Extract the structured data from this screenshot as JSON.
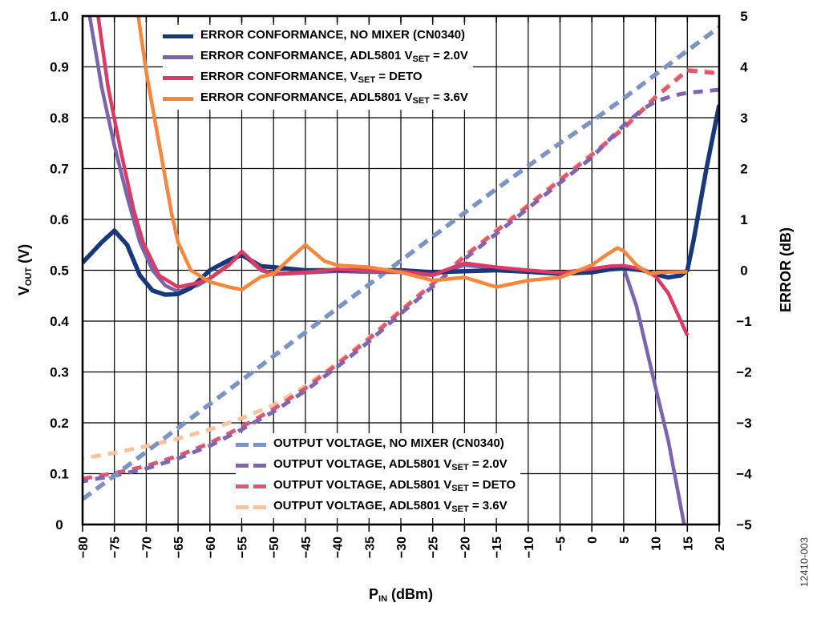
{
  "watermark": "12410-003",
  "axes": {
    "x_title": {
      "pre": "P",
      "sub": "IN",
      "post": " (dBm)"
    },
    "y_left_title": {
      "pre": "V",
      "sub": "OUT",
      "post": " (V)"
    },
    "y_right_title": {
      "pre": "ERROR (dB)",
      "sub": "",
      "post": ""
    },
    "x_ticks": [
      {
        "v": -80,
        "label": "−80"
      },
      {
        "v": -75,
        "label": "−75"
      },
      {
        "v": -70,
        "label": "−70"
      },
      {
        "v": -65,
        "label": "−65"
      },
      {
        "v": -60,
        "label": "−60"
      },
      {
        "v": -55,
        "label": "−55"
      },
      {
        "v": -50,
        "label": "−50"
      },
      {
        "v": -45,
        "label": "−45"
      },
      {
        "v": -40,
        "label": "−40"
      },
      {
        "v": -35,
        "label": "−35"
      },
      {
        "v": -30,
        "label": "−30"
      },
      {
        "v": -25,
        "label": "−25"
      },
      {
        "v": -20,
        "label": "−20"
      },
      {
        "v": -15,
        "label": "−15"
      },
      {
        "v": -10,
        "label": "−10"
      },
      {
        "v": -5,
        "label": "−5"
      },
      {
        "v": 0,
        "label": "0"
      },
      {
        "v": 5,
        "label": "5"
      },
      {
        "v": 10,
        "label": "10"
      },
      {
        "v": 15,
        "label": "15"
      },
      {
        "v": 20,
        "label": "20"
      }
    ],
    "y_left_ticks": [
      {
        "v": 0,
        "label": "0"
      },
      {
        "v": 0.1,
        "label": "0.1"
      },
      {
        "v": 0.2,
        "label": "0.2"
      },
      {
        "v": 0.3,
        "label": "0.3"
      },
      {
        "v": 0.4,
        "label": "0.4"
      },
      {
        "v": 0.5,
        "label": "0.5"
      },
      {
        "v": 0.6,
        "label": "0.6"
      },
      {
        "v": 0.7,
        "label": "0.7"
      },
      {
        "v": 0.8,
        "label": "0.8"
      },
      {
        "v": 0.9,
        "label": "0.9"
      },
      {
        "v": 1.0,
        "label": "1.0"
      }
    ],
    "y_right_ticks": [
      {
        "v": -5,
        "label": "−5"
      },
      {
        "v": -4,
        "label": "−4"
      },
      {
        "v": -3,
        "label": "−3"
      },
      {
        "v": -2,
        "label": "−2"
      },
      {
        "v": -1,
        "label": "−1"
      },
      {
        "v": 0,
        "label": "0"
      },
      {
        "v": 1,
        "label": "1"
      },
      {
        "v": 2,
        "label": "2"
      },
      {
        "v": 3,
        "label": "3"
      },
      {
        "v": 4,
        "label": "4"
      },
      {
        "v": 5,
        "label": "5"
      }
    ]
  },
  "legend_top": {
    "items": [
      {
        "pre": "ERROR CONFORMANCE, NO MIXER (CN0340)",
        "sub": "",
        "post": "",
        "color": "#17397c",
        "style": "solid"
      },
      {
        "pre": "ERROR CONFORMANCE, ADL5801 V",
        "sub": "SET",
        "post": " = 2.0V",
        "color": "#7c63ad",
        "style": "solid"
      },
      {
        "pre": "ERROR CONFORMANCE, V",
        "sub": "SET",
        "post": " = DETO",
        "color": "#dd3a63",
        "style": "solid"
      },
      {
        "pre": "ERROR CONFORMANCE, ADL5801 V",
        "sub": "SET",
        "post": " = 3.6V",
        "color": "#f6873c",
        "style": "solid"
      }
    ]
  },
  "legend_bottom": {
    "items": [
      {
        "pre": "OUTPUT VOLTAGE, NO MIXER (CN0340)",
        "sub": "",
        "post": "",
        "color": "#7b94c4",
        "style": "dashed"
      },
      {
        "pre": "OUTPUT VOLTAGE, ADL5801 V",
        "sub": "SET",
        "post": " = 2.0V",
        "color": "#8066ae",
        "style": "dashed"
      },
      {
        "pre": "OUTPUT VOLTAGE, ADL5801 V",
        "sub": "SET",
        "post": " = DETO",
        "color": "#e25672",
        "style": "dashed"
      },
      {
        "pre": "OUTPUT VOLTAGE, ADL5801 V",
        "sub": "SET",
        "post": " = 3.6V",
        "color": "#fbc39c",
        "style": "dashed"
      }
    ]
  },
  "chart_data": {
    "type": "line",
    "title": "",
    "xlabel": "PIN (dBm)",
    "ylabel_left": "VOUT (V)",
    "ylabel_right": "ERROR (dB)",
    "xlim": [
      -80,
      20
    ],
    "ylim_left": [
      0,
      1.0
    ],
    "ylim_right": [
      -5,
      5
    ],
    "grid": true,
    "legend_position": [
      "top-left-inside",
      "bottom-center-inside"
    ],
    "series": [
      {
        "name": "OUTPUT VOLTAGE, ADL5801 VSET = 3.6V",
        "axis": "v",
        "color": "#fbc39c",
        "dash": "12 9",
        "dashoffset": 10,
        "width": 5,
        "points": [
          [
            -80,
            0.13
          ],
          [
            -75,
            0.141
          ],
          [
            -70,
            0.154
          ],
          [
            -65,
            0.169
          ],
          [
            -60,
            0.187
          ],
          [
            -55,
            0.209
          ],
          [
            -50,
            0.235
          ],
          [
            -45,
            0.272
          ],
          [
            -40,
            0.318
          ],
          [
            -35,
            0.368
          ],
          [
            -30,
            0.422
          ],
          [
            -25,
            0.475
          ],
          [
            -20,
            0.529
          ],
          [
            -15,
            0.579
          ],
          [
            -10,
            0.629
          ],
          [
            -5,
            0.679
          ],
          [
            0,
            0.729
          ],
          [
            5,
            0.781
          ],
          [
            10,
            0.842
          ],
          [
            15,
            0.895
          ],
          [
            20,
            0.889
          ]
        ]
      },
      {
        "name": "OUTPUT VOLTAGE, ADL5801 VSET = DETO",
        "axis": "v",
        "color": "#e25672",
        "dash": "12 9",
        "dashoffset": 0,
        "width": 5,
        "points": [
          [
            -80,
            0.09
          ],
          [
            -75,
            0.101
          ],
          [
            -70,
            0.115
          ],
          [
            -65,
            0.135
          ],
          [
            -60,
            0.16
          ],
          [
            -55,
            0.192
          ],
          [
            -50,
            0.227
          ],
          [
            -45,
            0.268
          ],
          [
            -40,
            0.315
          ],
          [
            -35,
            0.365
          ],
          [
            -30,
            0.42
          ],
          [
            -25,
            0.473
          ],
          [
            -20,
            0.527
          ],
          [
            -15,
            0.577
          ],
          [
            -10,
            0.627
          ],
          [
            -5,
            0.677
          ],
          [
            0,
            0.727
          ],
          [
            5,
            0.779
          ],
          [
            10,
            0.84
          ],
          [
            15,
            0.893
          ],
          [
            20,
            0.887
          ]
        ]
      },
      {
        "name": "OUTPUT VOLTAGE, ADL5801 VSET = 2.0V",
        "axis": "v",
        "color": "#8066ae",
        "dash": "12 9",
        "dashoffset": 5,
        "width": 5,
        "points": [
          [
            -80,
            0.085
          ],
          [
            -75,
            0.096
          ],
          [
            -70,
            0.11
          ],
          [
            -65,
            0.13
          ],
          [
            -60,
            0.155
          ],
          [
            -55,
            0.187
          ],
          [
            -50,
            0.222
          ],
          [
            -45,
            0.263
          ],
          [
            -40,
            0.31
          ],
          [
            -35,
            0.36
          ],
          [
            -30,
            0.415
          ],
          [
            -25,
            0.468
          ],
          [
            -20,
            0.522
          ],
          [
            -15,
            0.572
          ],
          [
            -10,
            0.622
          ],
          [
            -5,
            0.672
          ],
          [
            0,
            0.722
          ],
          [
            3,
            0.76
          ],
          [
            5,
            0.785
          ],
          [
            8,
            0.817
          ],
          [
            10,
            0.832
          ],
          [
            13,
            0.844
          ],
          [
            15,
            0.849
          ],
          [
            20,
            0.855
          ]
        ]
      },
      {
        "name": "OUTPUT VOLTAGE, NO MIXER (CN0340)",
        "axis": "v",
        "color": "#7b94c4",
        "dash": "13 8",
        "dashoffset": 0,
        "width": 5.5,
        "points": [
          [
            -80,
            0.05
          ],
          [
            -75,
            0.096
          ],
          [
            -70,
            0.143
          ],
          [
            -65,
            0.19
          ],
          [
            -60,
            0.237
          ],
          [
            -55,
            0.284
          ],
          [
            -50,
            0.331
          ],
          [
            -45,
            0.378
          ],
          [
            -40,
            0.425
          ],
          [
            -35,
            0.472
          ],
          [
            -30,
            0.519
          ],
          [
            -25,
            0.566
          ],
          [
            -20,
            0.613
          ],
          [
            -15,
            0.66
          ],
          [
            -10,
            0.705
          ],
          [
            -5,
            0.75
          ],
          [
            0,
            0.793
          ],
          [
            5,
            0.838
          ],
          [
            10,
            0.885
          ],
          [
            15,
            0.932
          ],
          [
            20,
            0.978
          ]
        ]
      },
      {
        "name": "ERROR CONFORMANCE, ADL5801 VSET = 2.0V",
        "axis": "db",
        "color": "#7c63ad",
        "dash": "",
        "dashoffset": 0,
        "width": 4.5,
        "points": [
          [
            -79.3,
            5.3
          ],
          [
            -77,
            3.6
          ],
          [
            -75,
            2.45
          ],
          [
            -73,
            1.45
          ],
          [
            -71,
            0.55
          ],
          [
            -69,
            0.0
          ],
          [
            -67,
            -0.3
          ],
          [
            -65,
            -0.42
          ],
          [
            -62,
            -0.3
          ],
          [
            -60,
            -0.16
          ],
          [
            -57,
            0.12
          ],
          [
            -55,
            0.33
          ],
          [
            -52,
            0.0
          ],
          [
            -50,
            -0.08
          ],
          [
            -45,
            -0.05
          ],
          [
            -40,
            -0.02
          ],
          [
            -35,
            -0.04
          ],
          [
            -30,
            -0.04
          ],
          [
            -25,
            -0.1
          ],
          [
            -20,
            0.1
          ],
          [
            -15,
            0.04
          ],
          [
            -10,
            -0.03
          ],
          [
            -5,
            -0.06
          ],
          [
            0,
            0.0
          ],
          [
            3,
            0.04
          ],
          [
            5,
            0.05
          ],
          [
            7,
            -0.7
          ],
          [
            10,
            -2.3
          ],
          [
            12,
            -3.35
          ],
          [
            14.8,
            -5.2
          ]
        ]
      },
      {
        "name": "ERROR CONFORMANCE, NO MIXER (CN0340)",
        "axis": "db",
        "color": "#17397c",
        "dash": "",
        "dashoffset": 0,
        "width": 5.5,
        "points": [
          [
            -80,
            0.15
          ],
          [
            -77,
            0.55
          ],
          [
            -75,
            0.78
          ],
          [
            -73,
            0.5
          ],
          [
            -71,
            -0.1
          ],
          [
            -69,
            -0.4
          ],
          [
            -67,
            -0.48
          ],
          [
            -65,
            -0.47
          ],
          [
            -63,
            -0.35
          ],
          [
            -60,
            0.0
          ],
          [
            -57,
            0.2
          ],
          [
            -55,
            0.3
          ],
          [
            -52,
            0.08
          ],
          [
            -50,
            0.06
          ],
          [
            -45,
            0.0
          ],
          [
            -40,
            0.0
          ],
          [
            -35,
            0.0
          ],
          [
            -30,
            0.0
          ],
          [
            -25,
            -0.04
          ],
          [
            -20,
            -0.02
          ],
          [
            -15,
            0.0
          ],
          [
            -10,
            -0.03
          ],
          [
            -5,
            -0.07
          ],
          [
            0,
            -0.04
          ],
          [
            3,
            0.02
          ],
          [
            5,
            0.04
          ],
          [
            8,
            0.0
          ],
          [
            10,
            -0.08
          ],
          [
            12,
            -0.14
          ],
          [
            14,
            -0.1
          ],
          [
            15,
            0.0
          ],
          [
            16,
            0.6
          ],
          [
            18,
            2.0
          ],
          [
            20,
            3.25
          ]
        ]
      },
      {
        "name": "ERROR CONFORMANCE, VSET = DETO",
        "axis": "db",
        "color": "#dd3a63",
        "dash": "",
        "dashoffset": 0,
        "width": 4.5,
        "points": [
          [
            -77.9,
            5.3
          ],
          [
            -76,
            3.6
          ],
          [
            -74,
            2.35
          ],
          [
            -72,
            1.2
          ],
          [
            -70.5,
            0.55
          ],
          [
            -68,
            -0.1
          ],
          [
            -65,
            -0.33
          ],
          [
            -62,
            -0.25
          ],
          [
            -60,
            -0.16
          ],
          [
            -57,
            0.1
          ],
          [
            -55,
            0.37
          ],
          [
            -52,
            0.02
          ],
          [
            -50,
            -0.07
          ],
          [
            -45,
            -0.04
          ],
          [
            -40,
            0.02
          ],
          [
            -35,
            -0.01
          ],
          [
            -30,
            -0.02
          ],
          [
            -25,
            -0.09
          ],
          [
            -20,
            0.14
          ],
          [
            -15,
            0.06
          ],
          [
            -10,
            0.0
          ],
          [
            -5,
            -0.05
          ],
          [
            0,
            0.03
          ],
          [
            3,
            0.08
          ],
          [
            5,
            0.09
          ],
          [
            8,
            0.02
          ],
          [
            10,
            -0.12
          ],
          [
            12,
            -0.45
          ],
          [
            15,
            -1.28
          ]
        ]
      },
      {
        "name": "ERROR CONFORMANCE, ADL5801 VSET = 3.6V",
        "axis": "db",
        "color": "#f6873c",
        "dash": "",
        "dashoffset": 0,
        "width": 4.5,
        "points": [
          [
            -71.6,
            5.3
          ],
          [
            -70,
            3.9
          ],
          [
            -68,
            2.5
          ],
          [
            -66,
            1.1
          ],
          [
            -65,
            0.55
          ],
          [
            -63,
            0.0
          ],
          [
            -60,
            -0.23
          ],
          [
            -57,
            -0.33
          ],
          [
            -55,
            -0.38
          ],
          [
            -52,
            -0.13
          ],
          [
            -50,
            -0.07
          ],
          [
            -47,
            0.28
          ],
          [
            -45,
            0.5
          ],
          [
            -42,
            0.18
          ],
          [
            -40,
            0.1
          ],
          [
            -35,
            0.06
          ],
          [
            -30,
            -0.04
          ],
          [
            -25,
            -0.2
          ],
          [
            -20,
            -0.14
          ],
          [
            -15,
            -0.33
          ],
          [
            -10,
            -0.2
          ],
          [
            -5,
            -0.14
          ],
          [
            -2,
            0.0
          ],
          [
            0,
            0.1
          ],
          [
            2,
            0.28
          ],
          [
            4,
            0.44
          ],
          [
            5,
            0.38
          ],
          [
            7,
            0.1
          ],
          [
            9,
            -0.07
          ],
          [
            11,
            -0.04
          ],
          [
            15,
            -0.03
          ]
        ]
      }
    ]
  }
}
